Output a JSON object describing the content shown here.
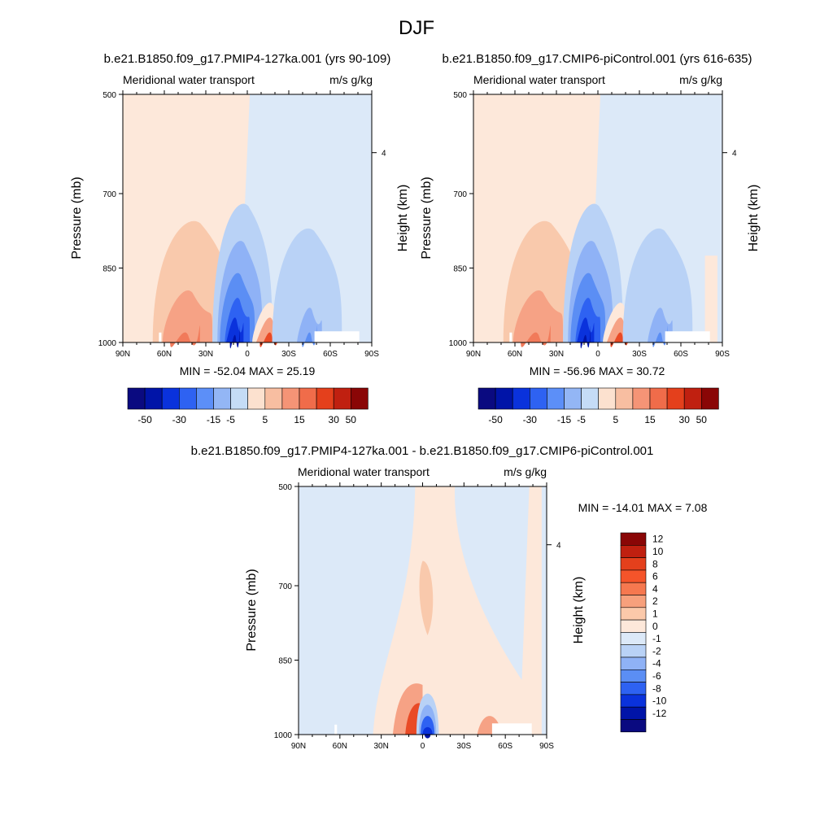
{
  "main_title": "DJF",
  "panels": [
    {
      "id": "p1",
      "header": "b.e21.B1850.f09_g17.PMIP4-127ka.001 (yrs 90-109)",
      "left_title": "Meridional water transport",
      "units": "m/s g/kg",
      "ylabel": "Pressure (mb)",
      "ylabel_right": "Height (km)",
      "minmax": "MIN = -52.04  MAX =  25.19"
    },
    {
      "id": "p2",
      "header": "b.e21.B1850.f09_g17.CMIP6-piControl.001 (yrs 616-635)",
      "left_title": "Meridional water transport",
      "units": "m/s g/kg",
      "ylabel": "Pressure (mb)",
      "ylabel_right": "Height (km)",
      "minmax": "MIN = -56.96  MAX =  30.72"
    },
    {
      "id": "p3",
      "header": "b.e21.B1850.f09_g17.PMIP4-127ka.001 - b.e21.B1850.f09_g17.CMIP6-piControl.001",
      "left_title": "Meridional water transport",
      "units": "m/s g/kg",
      "ylabel": "Pressure (mb)",
      "ylabel_right": "Height (km)",
      "minmax": "MIN = -14.01  MAX =   7.08"
    }
  ],
  "chart_data": {
    "type": "contour",
    "x_ticks": [
      "90N",
      "60N",
      "30N",
      "0",
      "30S",
      "60S",
      "90S"
    ],
    "y_ticks": [
      "500",
      "700",
      "850",
      "1000"
    ],
    "y_right_ticks": [
      "4"
    ],
    "xlim": [
      "90N",
      "90S"
    ],
    "ylim": [
      1000,
      500
    ],
    "colorbar_top": {
      "labels": [
        "-50",
        "-30",
        "-15",
        "-5",
        "5",
        "15",
        "30",
        "50"
      ],
      "colors": [
        "#0a0a80",
        "#0014a8",
        "#0a32dc",
        "#2e62f2",
        "#5c8ff8",
        "#93b6f5",
        "#c5dcf6",
        "#fce1cf",
        "#f8bea1",
        "#f59476",
        "#f06c4a",
        "#e4401c",
        "#c02010",
        "#8a0606"
      ]
    },
    "colorbar_diff": {
      "labels": [
        "12",
        "10",
        "8",
        "6",
        "4",
        "2",
        "1",
        "0",
        "-1",
        "-2",
        "-4",
        "-6",
        "-8",
        "-10",
        "-12"
      ],
      "colors": [
        "#8a0606",
        "#c02010",
        "#e4401c",
        "#f5542a",
        "#f6784f",
        "#f7a07c",
        "#fbc9aa",
        "#fde8da",
        "#dce9f8",
        "#b9d2f6",
        "#8fb2f6",
        "#5b8ef4",
        "#2e62f2",
        "#0a32dc",
        "#0014a8",
        "#0a0a80"
      ]
    }
  }
}
